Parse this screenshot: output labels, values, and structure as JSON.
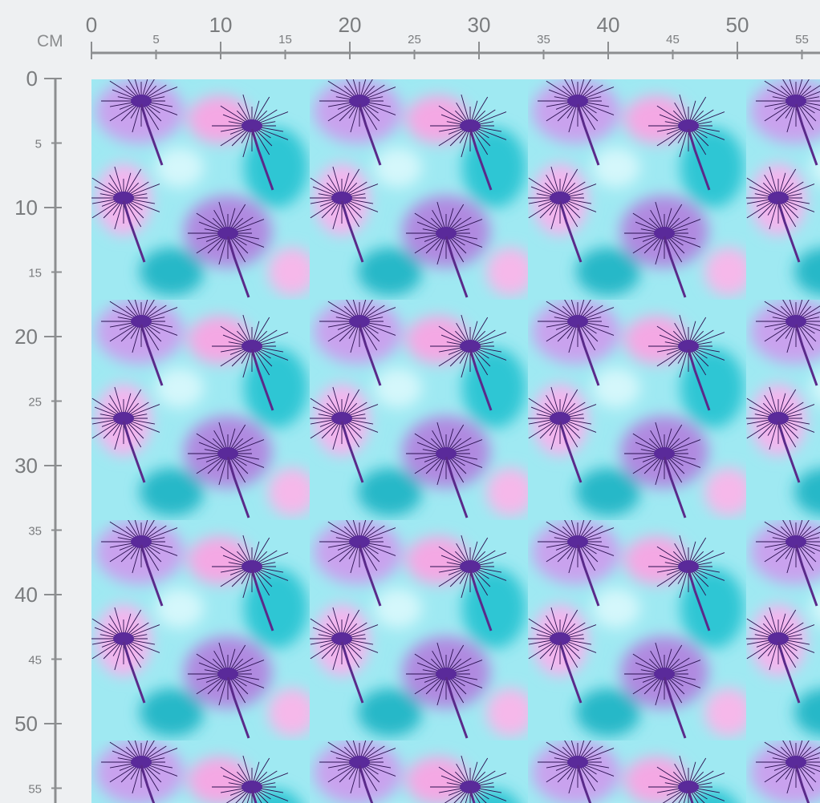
{
  "ruler": {
    "unit_label": "CM",
    "horizontal_labels": [
      0,
      5,
      10,
      15,
      20,
      25,
      30,
      35,
      40,
      45,
      50,
      55
    ],
    "vertical_labels": [
      0,
      5,
      10,
      15,
      20,
      25,
      30,
      35,
      40,
      45,
      50,
      55
    ]
  },
  "pattern": {
    "description_colors": {
      "pink": "#f3a6e6",
      "purple": "#9b59d0",
      "teal": "#2fc9d6",
      "aqua": "#7fe6f0",
      "dark": "#3a1a6a",
      "magenta": "#a0207f"
    }
  }
}
